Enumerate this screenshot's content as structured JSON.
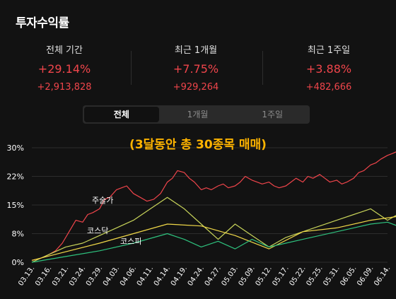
{
  "title": "투자수익률",
  "stats": [
    {
      "label": "전체 기간",
      "pct": "+29.14%",
      "amount": "+2,913,828"
    },
    {
      "label": "최근 1개월",
      "pct": "+7.75%",
      "amount": "+929,264"
    },
    {
      "label": "최근 1주일",
      "pct": "+3.88%",
      "amount": "+482,666"
    }
  ],
  "tabs": [
    {
      "label": "전체",
      "active": true
    },
    {
      "label": "1개월",
      "active": false
    },
    {
      "label": "1주일",
      "active": false
    }
  ],
  "headline": "(3달동안 총 30종목 매매)",
  "colors": {
    "up": "#f0454b",
    "accent": "#ffb400"
  },
  "chart_data": {
    "type": "line",
    "y_ticks": [
      "30%",
      "22%",
      "15%",
      "8%",
      "0%"
    ],
    "x_ticks": [
      "03.13.",
      "03.16.",
      "03.21.",
      "03.24.",
      "03.29.",
      "04.03.",
      "04.06.",
      "04.11.",
      "04.14.",
      "04.19.",
      "04.24.",
      "04.27.",
      "05.03.",
      "05.09.",
      "05.12.",
      "05.17.",
      "05.22.",
      "05.25.",
      "05.31.",
      "06.05.",
      "06.09.",
      "06.14."
    ],
    "ylim": [
      0,
      30
    ],
    "series": [
      {
        "name": "",
        "color": "#f0454b",
        "x": [
          0,
          0.5,
          1,
          1.4,
          1.8,
          2.2,
          2.6,
          3,
          3.3,
          3.6,
          4,
          4.3,
          4.6,
          5,
          5.3,
          5.6,
          6,
          6.4,
          6.8,
          7.2,
          7.6,
          8,
          8.3,
          8.6,
          9,
          9.3,
          9.6,
          10,
          10.3,
          10.6,
          11,
          11.3,
          11.6,
          12,
          12.3,
          12.6,
          13,
          13.3,
          13.6,
          14,
          14.3,
          14.6,
          15,
          15.3,
          15.6,
          16,
          16.3,
          16.6,
          17,
          17.3,
          17.6,
          18,
          18.3,
          18.6,
          19,
          19.3,
          19.6,
          20,
          20.3,
          20.6,
          21,
          21.3,
          21.6
        ],
        "values": [
          0.5,
          1,
          2,
          3,
          5,
          8,
          11,
          10.5,
          12.5,
          13,
          14,
          16.5,
          17,
          19,
          19.5,
          20,
          18,
          17,
          16,
          16.5,
          18,
          21,
          22,
          24,
          23.5,
          22,
          21,
          19,
          19.5,
          19,
          20,
          20.5,
          19.5,
          20,
          21,
          22.5,
          21.5,
          21,
          20.5,
          21,
          20,
          19.5,
          20,
          21,
          22,
          21,
          22.5,
          22,
          23,
          22,
          21,
          21.5,
          20.5,
          21,
          22,
          23.5,
          24,
          25.5,
          26,
          27,
          28,
          28.5,
          29.1
        ]
      },
      {
        "name": "주술가",
        "color": "#c8d45a",
        "x": [
          0,
          1,
          2,
          3,
          4,
          5,
          6,
          7,
          8,
          9,
          10,
          11,
          12,
          13,
          14,
          15,
          16,
          17,
          18,
          19,
          20,
          21,
          21.6
        ],
        "values": [
          0,
          2,
          4,
          5,
          7,
          9,
          11,
          14,
          17,
          14,
          10,
          6,
          10,
          7,
          4,
          6.5,
          8,
          9.5,
          11,
          12.5,
          14,
          11,
          12.5
        ]
      },
      {
        "name": "코스닥",
        "color": "#f0d848",
        "x": [
          0,
          4,
          8,
          10,
          12,
          14,
          16,
          18,
          20,
          21.6
        ],
        "values": [
          0.5,
          5,
          10,
          9.5,
          7,
          3.5,
          8,
          9,
          11,
          12
        ]
      },
      {
        "name": "코스피",
        "color": "#2ec27e",
        "x": [
          0,
          2,
          4,
          6,
          8,
          9,
          10,
          11,
          12,
          13,
          14,
          15,
          16,
          17,
          18,
          19,
          20,
          21,
          21.6
        ],
        "values": [
          0,
          1.5,
          3,
          5,
          7.5,
          6,
          4,
          5.5,
          3.5,
          6,
          4,
          5,
          6,
          7,
          8,
          9,
          10,
          10.5,
          9.5
        ]
      }
    ]
  }
}
